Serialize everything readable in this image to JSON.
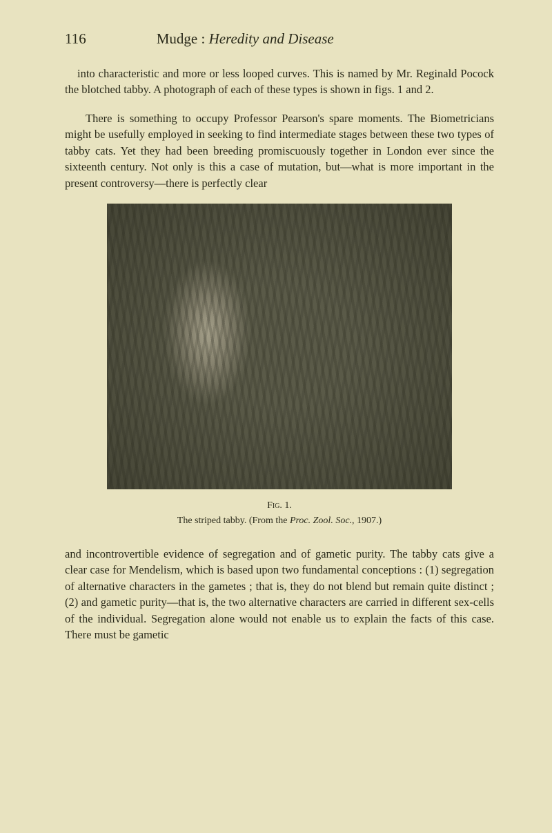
{
  "page_number": "116",
  "running_head_author": "Mudge :",
  "running_head_title": "Heredity and Disease",
  "paragraph1": "into characteristic and more or less looped curves. This is named by Mr. Reginald Pocock the blotched tabby. A photograph of each of these types is shown in figs. 1 and 2.",
  "paragraph2": "There is something to occupy Professor Pearson's spare moments. The Biometricians might be usefully employed in seeking to find intermediate stages between these two types of tabby cats. Yet they had been breeding promiscuously together in London ever since the sixteenth century. Not only is this a case of mutation, but—what is more important in the present controversy—there is perfectly clear",
  "figure": {
    "label": "Fig. 1.",
    "caption_prefix": "The striped tabby.   (From the ",
    "caption_italic": "Proc. Zool. Soc.",
    "caption_suffix": ", 1907.)"
  },
  "paragraph3": "and incontrovertible evidence of segregation and of gametic purity. The tabby cats give a clear case for Mendelism, which is based upon two fundamental conceptions : (1) segregation of alternative characters in the gametes ; that is, they do not blend but remain quite distinct ; (2) and gametic purity—that is, the two alternative characters are carried in different sex-cells of the individual. Segregation alone would not enable us to explain the facts of this case. There must be gametic"
}
